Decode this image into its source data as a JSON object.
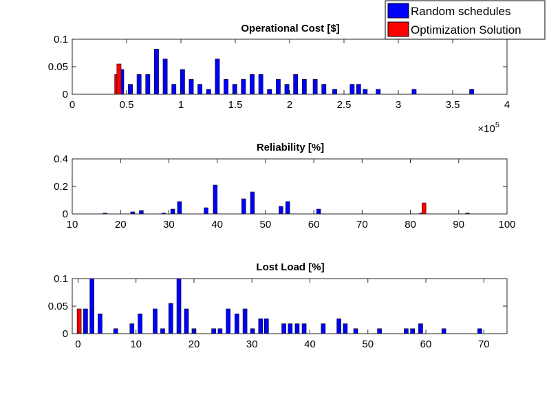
{
  "colors": {
    "random": "#0000ff",
    "optimization": "#ff0000",
    "edge": "#000000",
    "axis": "#262626"
  },
  "legend": {
    "items": [
      {
        "label": "Random schedules",
        "color": "#0000ff"
      },
      {
        "label": "Optimization Solution",
        "color": "#ff0000"
      }
    ]
  },
  "chart_data": [
    {
      "type": "bar",
      "title": "Operational Cost [$]",
      "xlim": [
        0,
        400000
      ],
      "ylim": [
        0,
        0.1
      ],
      "x_ticks": [
        0,
        50000,
        100000,
        150000,
        200000,
        250000,
        300000,
        350000,
        400000
      ],
      "x_tick_labels": [
        "0",
        "0.5",
        "1",
        "1.5",
        "2",
        "2.5",
        "3",
        "3.5",
        "4"
      ],
      "x_multiplier_label": "×10",
      "x_multiplier_exponent": "5",
      "y_ticks": [
        0,
        0.05,
        0.1
      ],
      "y_tick_labels": [
        "0",
        "0.05",
        "0.1"
      ],
      "series": [
        {
          "name": "Random schedules",
          "color": "#0000ff",
          "x": [
            45500,
            53500,
            61500,
            69500,
            77500,
            85500,
            93500,
            101500,
            109500,
            117500,
            125500,
            133500,
            141500,
            149500,
            157500,
            165500,
            173500,
            181500,
            189500,
            197500,
            205500,
            213500,
            223500,
            231500,
            241500,
            257500,
            263500,
            269500,
            281500,
            314500,
            367500
          ],
          "y": [
            0.045,
            0.018,
            0.036,
            0.036,
            0.082,
            0.064,
            0.018,
            0.045,
            0.027,
            0.018,
            0.009,
            0.064,
            0.027,
            0.018,
            0.027,
            0.036,
            0.036,
            0.009,
            0.027,
            0.018,
            0.036,
            0.027,
            0.027,
            0.018,
            0.009,
            0.018,
            0.018,
            0.009,
            0.009,
            0.009,
            0.009
          ]
        },
        {
          "name": "Optimization Solution",
          "color": "#ff0000",
          "x": [
            41000,
            43000
          ],
          "y": [
            0.036,
            0.055
          ]
        }
      ]
    },
    {
      "type": "bar",
      "title": "Reliability [%]",
      "xlim": [
        10,
        100
      ],
      "ylim": [
        0,
        0.4
      ],
      "x_ticks": [
        10,
        20,
        30,
        40,
        50,
        60,
        70,
        80,
        90,
        100
      ],
      "x_tick_labels": [
        "10",
        "20",
        "30",
        "40",
        "50",
        "60",
        "70",
        "80",
        "90",
        "100"
      ],
      "y_ticks": [
        0,
        0.2,
        0.4
      ],
      "y_tick_labels": [
        "0",
        "0.2",
        "0.4"
      ],
      "series": [
        {
          "name": "Random schedules",
          "color": "#0000ff",
          "x": [
            16.8,
            22.5,
            24.3,
            28.9,
            30.8,
            32.2,
            37.7,
            39.6,
            45.5,
            47.3,
            53.2,
            54.6,
            61.0,
            82.3,
            91.8
          ],
          "y": [
            0.006,
            0.015,
            0.025,
            0.006,
            0.035,
            0.09,
            0.045,
            0.21,
            0.11,
            0.16,
            0.055,
            0.09,
            0.035,
            0.006,
            0.006
          ]
        },
        {
          "name": "Optimization Solution",
          "color": "#ff0000",
          "x": [
            82.8
          ],
          "y": [
            0.08
          ]
        }
      ]
    },
    {
      "type": "bar",
      "title": "Lost Load [%]",
      "xlim": [
        -1,
        74
      ],
      "ylim": [
        0,
        0.1
      ],
      "x_ticks": [
        0,
        10,
        20,
        30,
        40,
        50,
        60,
        70
      ],
      "x_tick_labels": [
        "0",
        "10",
        "20",
        "30",
        "40",
        "50",
        "60",
        "70"
      ],
      "y_ticks": [
        0,
        0.05,
        0.1
      ],
      "y_tick_labels": [
        "0",
        "0.05",
        "0.1"
      ],
      "series": [
        {
          "name": "Random schedules",
          "color": "#0000ff",
          "x": [
            1.3,
            2.4,
            3.8,
            6.5,
            9.3,
            10.7,
            13.3,
            14.6,
            16.0,
            17.4,
            18.7,
            20.0,
            23.4,
            24.5,
            25.9,
            27.4,
            28.8,
            30.1,
            31.5,
            32.5,
            35.5,
            36.6,
            37.8,
            39.0,
            42.3,
            45.0,
            46.1,
            47.9,
            52.0,
            56.6,
            57.7,
            59.1,
            63.1,
            69.3
          ],
          "y": [
            0.045,
            0.1,
            0.036,
            0.009,
            0.018,
            0.036,
            0.045,
            0.009,
            0.055,
            0.1,
            0.045,
            0.009,
            0.009,
            0.009,
            0.045,
            0.036,
            0.045,
            0.009,
            0.027,
            0.027,
            0.018,
            0.018,
            0.018,
            0.018,
            0.018,
            0.027,
            0.018,
            0.009,
            0.009,
            0.009,
            0.009,
            0.018,
            0.009,
            0.009
          ]
        },
        {
          "name": "Optimization Solution",
          "color": "#ff0000",
          "x": [
            0.2
          ],
          "y": [
            0.045
          ]
        }
      ]
    }
  ]
}
